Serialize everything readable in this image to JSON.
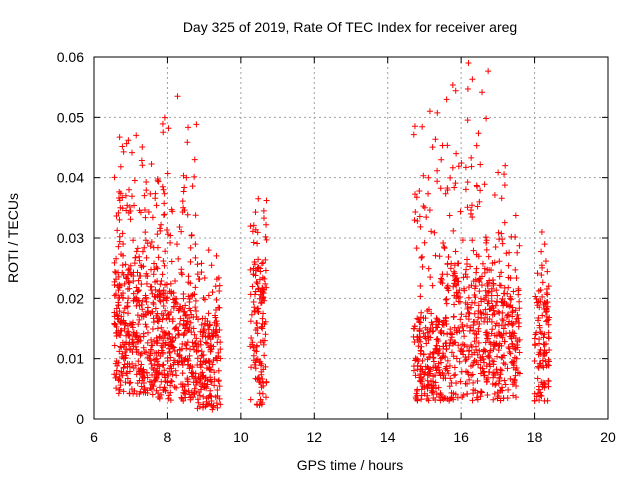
{
  "chart_data": {
    "type": "scatter",
    "title": "Day 325 of 2019, Rate Of TEC Index for receiver areg",
    "xlabel": "GPS time / hours",
    "ylabel": "ROTI / TECUs",
    "xlim": [
      6,
      20
    ],
    "ylim": [
      0,
      0.06
    ],
    "xticks": [
      "6",
      "8",
      "10",
      "12",
      "14",
      "16",
      "18",
      "20"
    ],
    "xtick_values": [
      6,
      8,
      10,
      12,
      14,
      16,
      18,
      20
    ],
    "yticks": [
      "0",
      "0.01",
      "0.02",
      "0.03",
      "0.04",
      "0.05",
      "0.06"
    ],
    "ytick_values": [
      0,
      0.01,
      0.02,
      0.03,
      0.04,
      0.05,
      0.06
    ],
    "grid": true,
    "marker": "+",
    "color": "#ff0000",
    "clusters": [
      {
        "x_start": 6.55,
        "x_end": 7.75,
        "y_low": 0.004,
        "y_high": 0.025,
        "peak": 0.047,
        "count": 420
      },
      {
        "x_start": 7.75,
        "x_end": 8.8,
        "y_low": 0.003,
        "y_high": 0.022,
        "peak": 0.0535,
        "count": 330
      },
      {
        "x_start": 8.8,
        "x_end": 9.45,
        "y_low": 0.0015,
        "y_high": 0.017,
        "peak": 0.028,
        "count": 180
      },
      {
        "x_start": 10.25,
        "x_end": 10.7,
        "y_low": 0.002,
        "y_high": 0.026,
        "peak": 0.0365,
        "count": 140
      },
      {
        "x_start": 14.7,
        "x_end": 15.6,
        "y_low": 0.003,
        "y_high": 0.017,
        "peak": 0.051,
        "count": 260
      },
      {
        "x_start": 15.6,
        "x_end": 16.8,
        "y_low": 0.003,
        "y_high": 0.026,
        "peak": 0.059,
        "count": 330
      },
      {
        "x_start": 16.8,
        "x_end": 17.6,
        "y_low": 0.003,
        "y_high": 0.022,
        "peak": 0.042,
        "count": 220
      },
      {
        "x_start": 18.0,
        "x_end": 18.4,
        "y_low": 0.003,
        "y_high": 0.02,
        "peak": 0.031,
        "count": 110
      }
    ]
  }
}
